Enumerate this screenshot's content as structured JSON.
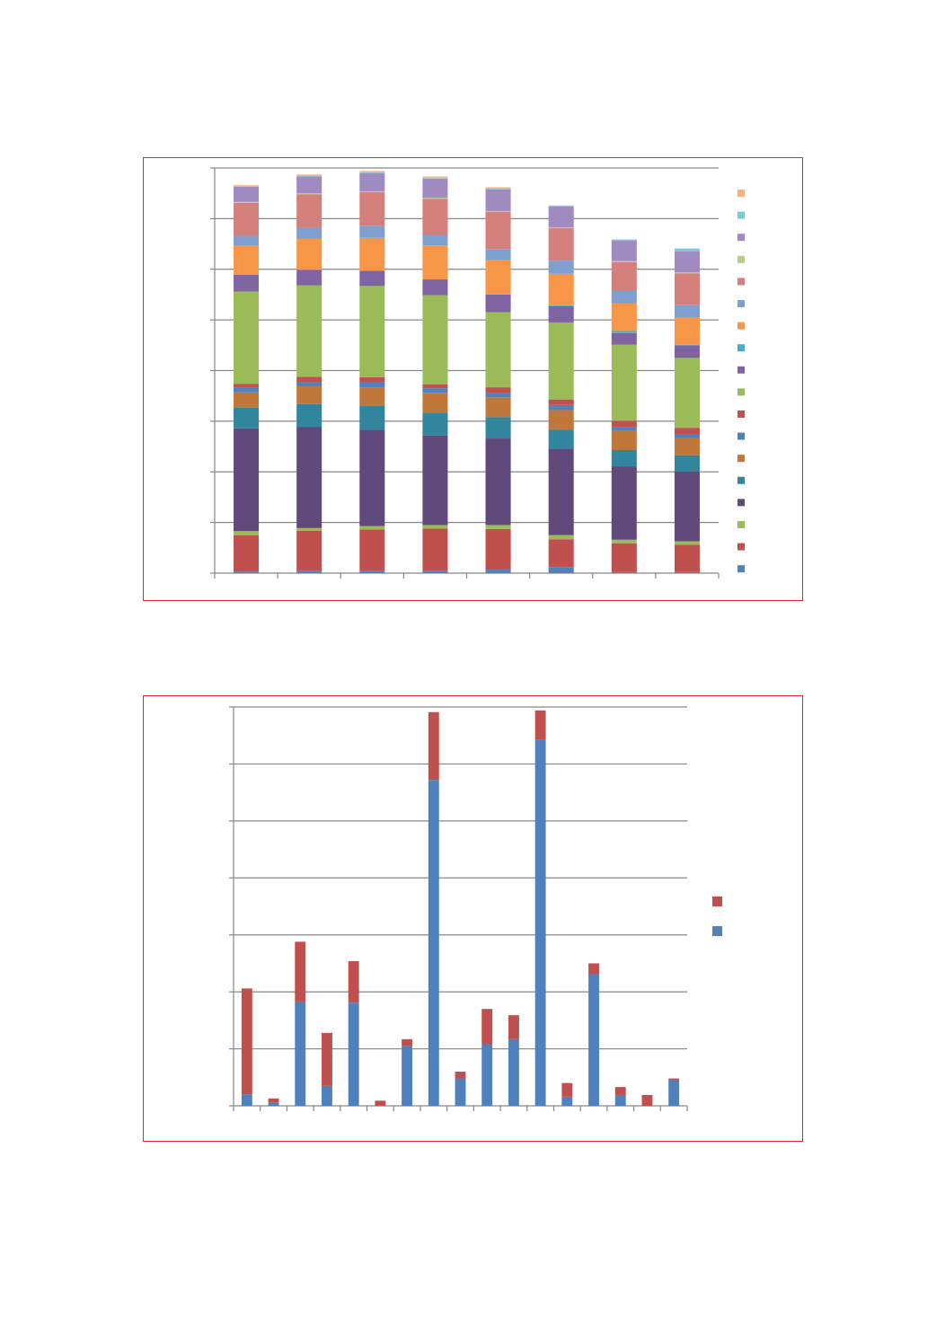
{
  "chart_data": [
    {
      "type": "bar",
      "stacked": true,
      "title": "",
      "xlabel": "",
      "ylabel": "",
      "categories": [
        "",
        "",
        "",
        "",
        "",
        "",
        "",
        ""
      ],
      "ylim": [
        0,
        8
      ],
      "grid": true,
      "legend": "right",
      "series": [
        {
          "color": "#4f81bd",
          "values": [
            0.03,
            0.05,
            0.05,
            0.05,
            0.07,
            0.12,
            0.02,
            0.02
          ]
        },
        {
          "color": "#c0504d",
          "values": [
            0.72,
            0.79,
            0.81,
            0.83,
            0.8,
            0.55,
            0.57,
            0.54
          ]
        },
        {
          "color": "#9bbb59",
          "values": [
            0.08,
            0.05,
            0.07,
            0.07,
            0.08,
            0.08,
            0.07,
            0.07
          ]
        },
        {
          "color": "#604a7b",
          "values": [
            2.03,
            2.0,
            1.9,
            1.77,
            1.71,
            1.71,
            1.45,
            1.38
          ]
        },
        {
          "color": "#31859c",
          "values": [
            0.41,
            0.45,
            0.47,
            0.45,
            0.42,
            0.37,
            0.32,
            0.32
          ]
        },
        {
          "color": "#c0773a",
          "values": [
            0.3,
            0.35,
            0.37,
            0.39,
            0.39,
            0.39,
            0.38,
            0.34
          ]
        },
        {
          "color": "#4f81bd",
          "values": [
            0.09,
            0.08,
            0.1,
            0.09,
            0.08,
            0.1,
            0.08,
            0.07
          ]
        },
        {
          "color": "#c0504d",
          "values": [
            0.08,
            0.11,
            0.1,
            0.08,
            0.12,
            0.11,
            0.12,
            0.13
          ]
        },
        {
          "color": "#9bbb59",
          "values": [
            1.82,
            1.8,
            1.8,
            1.76,
            1.48,
            1.52,
            1.5,
            1.38
          ]
        },
        {
          "color": "#8064a2",
          "values": [
            0.33,
            0.31,
            0.3,
            0.31,
            0.35,
            0.32,
            0.23,
            0.25
          ]
        },
        {
          "color": "#4bacc6",
          "values": [
            0.0,
            0.0,
            0.0,
            0.0,
            0.0,
            0.02,
            0.04,
            0.01
          ]
        },
        {
          "color": "#f79646",
          "values": [
            0.57,
            0.61,
            0.65,
            0.67,
            0.68,
            0.62,
            0.55,
            0.53
          ]
        },
        {
          "color": "#7f9fcf",
          "values": [
            0.2,
            0.23,
            0.23,
            0.2,
            0.22,
            0.26,
            0.24,
            0.26
          ]
        },
        {
          "color": "#d37f7c",
          "values": [
            0.65,
            0.65,
            0.67,
            0.72,
            0.73,
            0.64,
            0.57,
            0.62
          ]
        },
        {
          "color": "#b3cf84",
          "values": [
            0.02,
            0.02,
            0.02,
            0.02,
            0.02,
            0.02,
            0.02,
            0.02
          ]
        },
        {
          "color": "#a08bc1",
          "values": [
            0.3,
            0.33,
            0.36,
            0.38,
            0.43,
            0.41,
            0.41,
            0.41
          ]
        },
        {
          "color": "#7fc7dc",
          "values": [
            0.01,
            0.01,
            0.01,
            0.01,
            0.01,
            0.02,
            0.02,
            0.06
          ]
        },
        {
          "color": "#f8b07a",
          "values": [
            0.02,
            0.03,
            0.03,
            0.03,
            0.03,
            0.0,
            0.0,
            0.0
          ]
        }
      ]
    },
    {
      "type": "bar",
      "stacked": true,
      "title": "",
      "xlabel": "",
      "ylabel": "",
      "categories": [
        "",
        "",
        "",
        "",
        "",
        "",
        "",
        "",
        "",
        "",
        "",
        "",
        "",
        "",
        "",
        "",
        ""
      ],
      "ylim": [
        0,
        7
      ],
      "grid": true,
      "legend": "right",
      "series": [
        {
          "color": "#4f81bd",
          "values": [
            0.2,
            0.05,
            1.83,
            0.35,
            1.81,
            0.0,
            1.05,
            5.72,
            0.48,
            1.08,
            1.17,
            6.42,
            0.16,
            2.31,
            0.19,
            0.0,
            0.45
          ]
        },
        {
          "color": "#c0504d",
          "values": [
            1.86,
            0.08,
            1.05,
            0.93,
            0.73,
            0.09,
            0.12,
            1.19,
            0.12,
            0.62,
            0.42,
            0.52,
            0.24,
            0.19,
            0.14,
            0.19,
            0.03
          ]
        }
      ]
    }
  ]
}
